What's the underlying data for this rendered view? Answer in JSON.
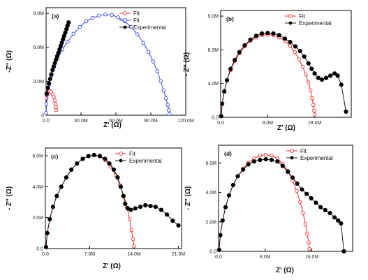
{
  "colors": {
    "fit": "#ee1111",
    "fit2": "#2233dd",
    "experimental": "#000000"
  },
  "chart_data": [
    {
      "type": "scatter",
      "panel_label": "(a)",
      "xlabel": "Z' (Ω)",
      "ylabel": "-Z'' (Ω)",
      "xlim": [
        0,
        120
      ],
      "ylim": [
        0,
        9.5
      ],
      "x_ticks": [
        0,
        30,
        60,
        90,
        120
      ],
      "x_tick_labels": [
        "0.0",
        "30.0M",
        "60.0M",
        "90.0M",
        "120.0M"
      ],
      "y_ticks": [
        0,
        3,
        6,
        9
      ],
      "y_tick_labels": [
        "0",
        "3.0M",
        "6.0M",
        "9.0M"
      ],
      "legend": [
        "Fit",
        "Fit",
        "Experimental"
      ],
      "series": [
        {
          "name": "Fit",
          "kind": "fit-red",
          "x": [
            0.35,
            0.6,
            1.5,
            3.0,
            4.4,
            5.6,
            6.6,
            7.4,
            8.0,
            8.5,
            8.7
          ],
          "y": [
            1.5,
            1.8,
            2.05,
            2.15,
            2.05,
            1.85,
            1.6,
            1.3,
            1.0,
            0.72,
            0.45
          ]
        },
        {
          "name": "Fit",
          "kind": "fit-blue",
          "x": [
            0.05,
            0.3,
            1,
            2.5,
            4.5,
            7,
            10,
            14,
            18.5,
            23.5,
            29,
            34.5,
            40,
            45.5,
            51,
            56.5,
            62,
            67.5,
            73,
            78.5,
            83.5,
            88,
            92,
            95.5,
            98.5,
            101,
            103,
            104.5,
            105.5,
            106
          ],
          "y": [
            0.2,
            1.0,
            1.8,
            2.7,
            3.5,
            4.3,
            5.0,
            5.8,
            6.5,
            7.2,
            7.8,
            8.3,
            8.6,
            8.8,
            8.9,
            8.85,
            8.65,
            8.3,
            7.8,
            7.15,
            6.4,
            5.6,
            4.75,
            3.9,
            3.0,
            2.2,
            1.5,
            0.9,
            0.45,
            0.1
          ]
        },
        {
          "name": "Experimental",
          "kind": "exp",
          "x": [
            0.5,
            1.5,
            2.5,
            3.5,
            4.5,
            5.5,
            6.5,
            7.5,
            8.5,
            9.5,
            10.5,
            11.5,
            12.5,
            13.5,
            14.5,
            15.5,
            16.5,
            17.5,
            18.5,
            19.3
          ],
          "y": [
            1.9,
            2.4,
            2.8,
            3.2,
            3.6,
            4.0,
            4.3,
            4.6,
            4.9,
            5.2,
            5.5,
            5.8,
            6.1,
            6.4,
            6.7,
            7.0,
            7.3,
            7.6,
            7.9,
            8.2
          ]
        }
      ]
    },
    {
      "type": "scatter",
      "panel_label": "(b)",
      "xlabel": "Z' (Ω)",
      "ylabel": "- Z'' (Ω)",
      "xlim": [
        0,
        25
      ],
      "ylim": [
        0,
        9.5
      ],
      "x_ticks": [
        0,
        9,
        18
      ],
      "x_tick_labels": [
        "0.0",
        "9.0M",
        "18.0M"
      ],
      "y_ticks": [
        0,
        3,
        6,
        9
      ],
      "y_tick_labels": [
        "0.0",
        "3.0M",
        "6.0M",
        "9.0M"
      ],
      "legend": [
        "Fit",
        "Experimental"
      ],
      "series": [
        {
          "name": "Fit",
          "kind": "fit-red",
          "x": [
            0.1,
            0.3,
            0.7,
            1.2,
            1.9,
            2.7,
            3.6,
            4.6,
            5.7,
            6.8,
            7.9,
            9.0,
            10.1,
            11.2,
            12.3,
            13.3,
            14.2,
            15.0,
            15.7,
            16.3,
            16.8,
            17.2,
            17.5,
            17.75,
            17.9,
            18.0
          ],
          "y": [
            0.1,
            1.2,
            2.3,
            3.3,
            4.2,
            5.0,
            5.7,
            6.3,
            6.8,
            7.1,
            7.3,
            7.35,
            7.3,
            7.1,
            6.8,
            6.35,
            5.8,
            5.15,
            4.5,
            3.8,
            3.1,
            2.4,
            1.7,
            1.1,
            0.6,
            0.25
          ]
        },
        {
          "name": "Experimental",
          "kind": "exp",
          "x": [
            0.1,
            0.3,
            0.7,
            1.2,
            1.9,
            2.7,
            3.6,
            4.6,
            5.7,
            6.8,
            7.9,
            9.0,
            10.1,
            11.2,
            12.3,
            13.3,
            14.3,
            15.2,
            16.0,
            16.8,
            17.4,
            18.0,
            18.7,
            19.4,
            20.2,
            21.0,
            21.8,
            22.4,
            23.1,
            24.0
          ],
          "y": [
            0.1,
            1.2,
            2.3,
            3.3,
            4.3,
            5.1,
            5.8,
            6.4,
            6.9,
            7.25,
            7.45,
            7.5,
            7.45,
            7.3,
            7.0,
            6.7,
            6.3,
            5.9,
            5.4,
            4.8,
            4.3,
            3.9,
            3.5,
            3.35,
            3.5,
            3.7,
            3.9,
            3.7,
            2.9,
            0.5
          ]
        }
      ]
    },
    {
      "type": "scatter",
      "panel_label": "(c)",
      "xlabel": "Z' (Ω)",
      "ylabel": "- Z'' (Ω)",
      "xlim": [
        0,
        21.5
      ],
      "ylim": [
        0,
        6.5
      ],
      "x_ticks": [
        0,
        7,
        14,
        21
      ],
      "x_tick_labels": [
        "0.0",
        "7.0M",
        "14.0M",
        "21.0M"
      ],
      "y_ticks": [
        0,
        2,
        4,
        6
      ],
      "y_tick_labels": [
        "0.0",
        "2.0M",
        "4.0M",
        "6.0M"
      ],
      "legend": [
        "Fit",
        "Experimental"
      ],
      "series": [
        {
          "name": "Fit",
          "kind": "fit-red",
          "x": [
            0.1,
            0.3,
            0.7,
            1.2,
            1.8,
            2.5,
            3.3,
            4.1,
            5.0,
            5.9,
            6.8,
            7.7,
            8.6,
            9.5,
            10.3,
            11.1,
            11.8,
            12.4,
            12.9,
            13.3,
            13.6,
            13.85,
            14.0
          ],
          "y": [
            0.1,
            1.0,
            1.9,
            2.7,
            3.4,
            4.0,
            4.6,
            5.1,
            5.5,
            5.8,
            5.98,
            6.03,
            5.95,
            5.7,
            5.3,
            4.75,
            4.1,
            3.4,
            2.65,
            1.9,
            1.2,
            0.6,
            0.15
          ]
        },
        {
          "name": "Experimental",
          "kind": "exp",
          "x": [
            0.1,
            0.3,
            0.7,
            1.2,
            1.8,
            2.5,
            3.3,
            4.1,
            5.0,
            5.9,
            6.8,
            7.7,
            8.6,
            9.4,
            10.1,
            10.8,
            11.4,
            11.9,
            12.3,
            12.6,
            13.0,
            13.5,
            14.2,
            15.0,
            15.8,
            16.6,
            17.4,
            18.3,
            19.2,
            20.1,
            21.0
          ],
          "y": [
            0.1,
            1.0,
            1.9,
            2.7,
            3.4,
            4.0,
            4.6,
            5.1,
            5.5,
            5.8,
            5.98,
            6.05,
            5.98,
            5.8,
            5.5,
            5.1,
            4.6,
            4.0,
            3.4,
            2.9,
            2.6,
            2.5,
            2.6,
            2.7,
            2.8,
            2.75,
            2.7,
            2.5,
            2.2,
            1.8,
            1.5
          ]
        }
      ]
    },
    {
      "type": "scatter",
      "panel_label": "(d)",
      "xlabel": "Z' (Ω)",
      "ylabel": "- Z'' (Ω)",
      "xlim": [
        0,
        23
      ],
      "ylim": [
        0,
        7.2
      ],
      "x_ticks": [
        0,
        8,
        16
      ],
      "x_tick_labels": [
        "0.0",
        "8.0M",
        "16.0M"
      ],
      "y_ticks": [
        0,
        2,
        4,
        6
      ],
      "y_tick_labels": [
        "0.0",
        "2.0M",
        "4.0M",
        "6.0M"
      ],
      "legend": [
        "Fit",
        "Experimental"
      ],
      "series": [
        {
          "name": "Fit",
          "kind": "fit-red",
          "x": [
            0.1,
            0.3,
            0.7,
            1.2,
            1.8,
            2.5,
            3.3,
            4.2,
            5.1,
            6.1,
            7.1,
            8.1,
            9.1,
            10.1,
            11.0,
            11.9,
            12.7,
            13.4,
            14.0,
            14.5,
            14.9,
            15.2,
            15.45,
            15.6
          ],
          "y": [
            0.1,
            1.1,
            2.1,
            3.0,
            3.8,
            4.5,
            5.1,
            5.6,
            6.0,
            6.3,
            6.5,
            6.55,
            6.5,
            6.3,
            5.95,
            5.45,
            4.8,
            4.1,
            3.35,
            2.6,
            1.85,
            1.2,
            0.6,
            0.15
          ]
        },
        {
          "name": "Experimental",
          "kind": "exp",
          "x": [
            0.1,
            0.3,
            0.7,
            1.2,
            1.8,
            2.5,
            3.3,
            4.2,
            5.1,
            6.1,
            7.1,
            8.1,
            9.1,
            10.1,
            11.0,
            11.9,
            12.7,
            13.5,
            14.3,
            15.1,
            15.9,
            16.7,
            17.5,
            18.3,
            19.1,
            19.9,
            20.5,
            21.0,
            21.5
          ],
          "y": [
            0.1,
            1.1,
            2.1,
            3.0,
            3.8,
            4.5,
            5.1,
            5.55,
            5.9,
            6.1,
            6.2,
            6.25,
            6.2,
            6.1,
            5.8,
            5.4,
            5.0,
            4.6,
            4.2,
            3.9,
            3.6,
            3.3,
            3.0,
            2.8,
            2.6,
            2.3,
            2.1,
            1.9,
            0.0
          ]
        }
      ]
    }
  ]
}
